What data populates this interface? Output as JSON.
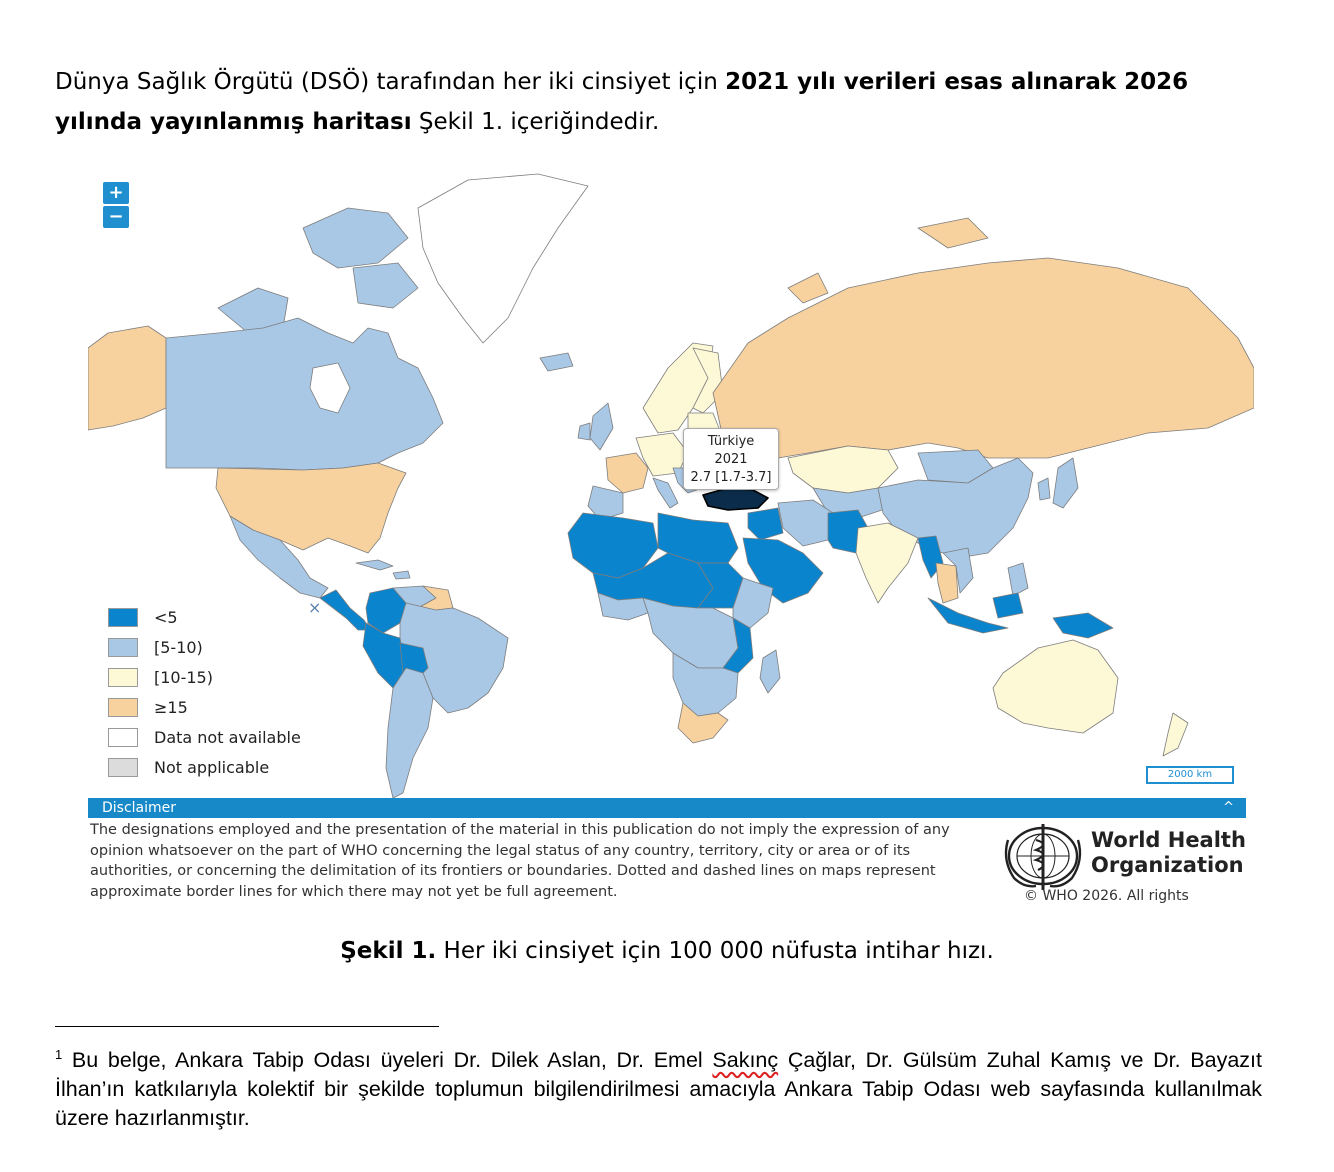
{
  "intro": {
    "part1": "Dünya Sağlık Örgütü (DSÖ) tarafından her iki cinsiyet için ",
    "bold1": "2021 yılı verileri esas alınarak 2026 yılında yayınlanmış haritası",
    "part2": " Şekil 1. içeriğindedir."
  },
  "map": {
    "zoom_in": "+",
    "zoom_out": "−",
    "close": "×",
    "scale": "2000 km",
    "tooltip": {
      "country": "Türkiye",
      "year": "2021",
      "value": "2.7 [1.7-3.7]"
    },
    "legend": [
      {
        "label": "<5",
        "color": "#0a84cc"
      },
      {
        "label": "[5-10)",
        "color": "#a9c8e6"
      },
      {
        "label": "[10-15)",
        "color": "#fdf8d5"
      },
      {
        "label": "≥15",
        "color": "#f7d29f"
      },
      {
        "label": "Data not available",
        "color": "#ffffff"
      },
      {
        "label": "Not applicable",
        "color": "#dcdcdc"
      }
    ],
    "highlight_color": "#0b2c4a"
  },
  "disclaimer": {
    "title": "Disclaimer",
    "caret": "^",
    "text": "The designations employed and the presentation of the material in this publication do not imply the expression of any opinion whatsoever on the part of WHO concerning the legal status of any country, territory, city or area or of its authorities, or concerning the delimitation of its frontiers or boundaries. Dotted and dashed lines on maps represent approximate border lines for which there may not yet be full agreement.",
    "org_line1": "World Health",
    "org_line2": "Organization",
    "copyright": "© WHO 2026. All rights"
  },
  "caption": {
    "label": "Şekil 1.",
    "text": " Her iki cinsiyet için 100 000 nüfusta intihar hızı."
  },
  "footnote": {
    "number": "1",
    "part1": " Bu belge, Ankara Tabip Odası üyeleri Dr. Dilek Aslan, Dr. Emel ",
    "flagged": "Sakınç",
    "part2": " Çağlar, Dr. Gülsüm Zuhal Kamış ve Dr. Bayazıt İlhan’ın katkılarıyla kolektif bir şekilde toplumun bilgilendirilmesi amacıyla Ankara Tabip Odası web sayfasında kullanılmak üzere hazırlanmıştır."
  }
}
